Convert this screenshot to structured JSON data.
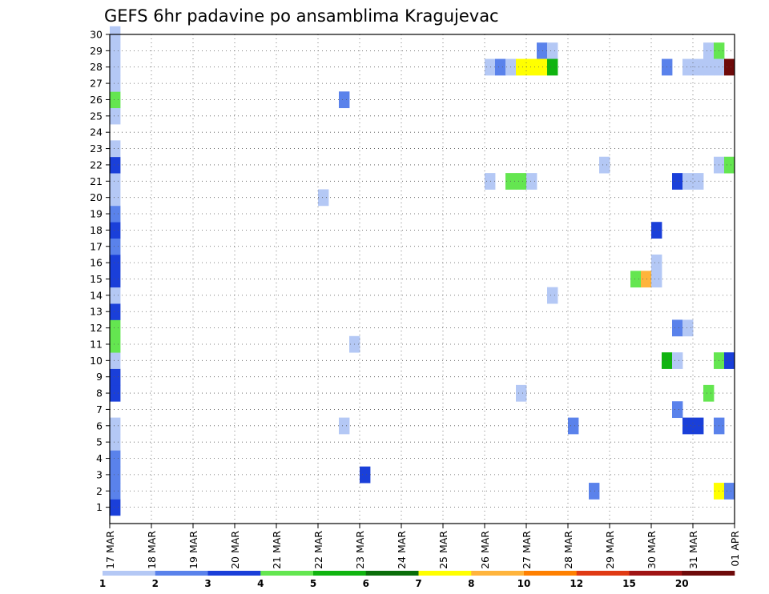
{
  "chart_data": {
    "type": "heatmap",
    "title": "GEFS 6hr padavine po ansamblima Kragujevac",
    "xlabel": "",
    "ylabel": "",
    "x_tick_labels": [
      "17 MAR",
      "18 MAR",
      "19 MAR",
      "20 MAR",
      "21 MAR",
      "22 MAR",
      "23 MAR",
      "24 MAR",
      "25 MAR",
      "26 MAR",
      "27 MAR",
      "28 MAR",
      "29 MAR",
      "30 MAR",
      "31 MAR",
      "01 APR"
    ],
    "x_unit": "6-hour steps from 17 MAR 00Z",
    "x_range": [
      0,
      60
    ],
    "y_tick_labels": [
      "1",
      "2",
      "3",
      "4",
      "5",
      "6",
      "7",
      "8",
      "9",
      "10",
      "11",
      "12",
      "13",
      "14",
      "15",
      "16",
      "17",
      "18",
      "19",
      "20",
      "21",
      "22",
      "23",
      "24",
      "25",
      "26",
      "27",
      "28",
      "29",
      "30"
    ],
    "y_range": [
      0,
      30
    ],
    "grid": true,
    "colorbar": {
      "labels": [
        "1",
        "2",
        "3",
        "4",
        "5",
        "6",
        "7",
        "8",
        "10",
        "12",
        "15",
        "20"
      ],
      "colors": [
        "#b4c8f5",
        "#5a82eb",
        "#1a3fd9",
        "#64e650",
        "#10b410",
        "#0a6e0a",
        "#ffff00",
        "#ffb43c",
        "#ff8000",
        "#e03a14",
        "#a01414",
        "#6e0a0a"
      ]
    },
    "cells": [
      {
        "t": 0.5,
        "m": 1,
        "l": 3
      },
      {
        "t": 0.5,
        "m": 2,
        "l": 2
      },
      {
        "t": 0.5,
        "m": 3,
        "l": 2
      },
      {
        "t": 0.5,
        "m": 4,
        "l": 2
      },
      {
        "t": 0.5,
        "m": 5,
        "l": 1
      },
      {
        "t": 0.5,
        "m": 6,
        "l": 1
      },
      {
        "t": 0.5,
        "m": 8,
        "l": 3
      },
      {
        "t": 0.5,
        "m": 9,
        "l": 3
      },
      {
        "t": 0.5,
        "m": 10,
        "l": 1
      },
      {
        "t": 0.5,
        "m": 11,
        "l": 4
      },
      {
        "t": 0.5,
        "m": 12,
        "l": 4
      },
      {
        "t": 0.5,
        "m": 13,
        "l": 3
      },
      {
        "t": 0.5,
        "m": 14,
        "l": 1
      },
      {
        "t": 0.5,
        "m": 15,
        "l": 3
      },
      {
        "t": 0.5,
        "m": 16,
        "l": 3
      },
      {
        "t": 0.5,
        "m": 17,
        "l": 2
      },
      {
        "t": 0.5,
        "m": 18,
        "l": 3
      },
      {
        "t": 0.5,
        "m": 19,
        "l": 2
      },
      {
        "t": 0.5,
        "m": 20,
        "l": 1
      },
      {
        "t": 0.5,
        "m": 21,
        "l": 1
      },
      {
        "t": 0.5,
        "m": 22,
        "l": 3
      },
      {
        "t": 0.5,
        "m": 23,
        "l": 1
      },
      {
        "t": 0.5,
        "m": 25,
        "l": 1
      },
      {
        "t": 0.5,
        "m": 26,
        "l": 4
      },
      {
        "t": 0.5,
        "m": 27,
        "l": 1
      },
      {
        "t": 0.5,
        "m": 28,
        "l": 1
      },
      {
        "t": 0.5,
        "m": 29,
        "l": 1
      },
      {
        "t": 0.5,
        "m": 30,
        "l": 1
      },
      {
        "t": 20.5,
        "m": 20,
        "l": 1
      },
      {
        "t": 22.5,
        "m": 6,
        "l": 1
      },
      {
        "t": 22.5,
        "m": 26,
        "l": 2
      },
      {
        "t": 23.5,
        "m": 11,
        "l": 1
      },
      {
        "t": 24.5,
        "m": 3,
        "l": 3
      },
      {
        "t": 36.5,
        "m": 28,
        "l": 1
      },
      {
        "t": 36.5,
        "m": 21,
        "l": 1
      },
      {
        "t": 37.5,
        "m": 28,
        "l": 2
      },
      {
        "t": 38.5,
        "m": 28,
        "l": 1
      },
      {
        "t": 38.5,
        "m": 21,
        "l": 4
      },
      {
        "t": 39.5,
        "m": 28,
        "l": 7
      },
      {
        "t": 39.5,
        "m": 21,
        "l": 4
      },
      {
        "t": 39.5,
        "m": 8,
        "l": 1
      },
      {
        "t": 40.5,
        "m": 28,
        "l": 7
      },
      {
        "t": 40.5,
        "m": 21,
        "l": 1
      },
      {
        "t": 41.5,
        "m": 29,
        "l": 2
      },
      {
        "t": 41.5,
        "m": 28,
        "l": 7
      },
      {
        "t": 42.5,
        "m": 29,
        "l": 1
      },
      {
        "t": 42.5,
        "m": 28,
        "l": 5
      },
      {
        "t": 42.5,
        "m": 14,
        "l": 1
      },
      {
        "t": 44.5,
        "m": 6,
        "l": 2
      },
      {
        "t": 46.5,
        "m": 2,
        "l": 2
      },
      {
        "t": 47.5,
        "m": 22,
        "l": 1
      },
      {
        "t": 50.5,
        "m": 15,
        "l": 4
      },
      {
        "t": 51.5,
        "m": 15,
        "l": 8
      },
      {
        "t": 52.5,
        "m": 18,
        "l": 3
      },
      {
        "t": 52.5,
        "m": 16,
        "l": 1
      },
      {
        "t": 52.5,
        "m": 15,
        "l": 1
      },
      {
        "t": 53.5,
        "m": 28,
        "l": 2
      },
      {
        "t": 53.5,
        "m": 10,
        "l": 5
      },
      {
        "t": 54.5,
        "m": 21,
        "l": 3
      },
      {
        "t": 54.5,
        "m": 12,
        "l": 2
      },
      {
        "t": 54.5,
        "m": 10,
        "l": 1
      },
      {
        "t": 54.5,
        "m": 7,
        "l": 2
      },
      {
        "t": 55.5,
        "m": 28,
        "l": 1
      },
      {
        "t": 55.5,
        "m": 21,
        "l": 1
      },
      {
        "t": 55.5,
        "m": 12,
        "l": 1
      },
      {
        "t": 55.5,
        "m": 6,
        "l": 3
      },
      {
        "t": 56.5,
        "m": 28,
        "l": 1
      },
      {
        "t": 56.5,
        "m": 21,
        "l": 1
      },
      {
        "t": 56.5,
        "m": 6,
        "l": 3
      },
      {
        "t": 57.5,
        "m": 29,
        "l": 1
      },
      {
        "t": 57.5,
        "m": 28,
        "l": 1
      },
      {
        "t": 57.5,
        "m": 8,
        "l": 4
      },
      {
        "t": 58.5,
        "m": 29,
        "l": 4
      },
      {
        "t": 58.5,
        "m": 28,
        "l": 1
      },
      {
        "t": 58.5,
        "m": 22,
        "l": 1
      },
      {
        "t": 58.5,
        "m": 10,
        "l": 4
      },
      {
        "t": 58.5,
        "m": 6,
        "l": 2
      },
      {
        "t": 58.5,
        "m": 2,
        "l": 7
      },
      {
        "t": 59.5,
        "m": 28,
        "l": 12
      },
      {
        "t": 59.5,
        "m": 22,
        "l": 4
      },
      {
        "t": 59.5,
        "m": 10,
        "l": 3
      },
      {
        "t": 59.5,
        "m": 2,
        "l": 2
      }
    ]
  }
}
